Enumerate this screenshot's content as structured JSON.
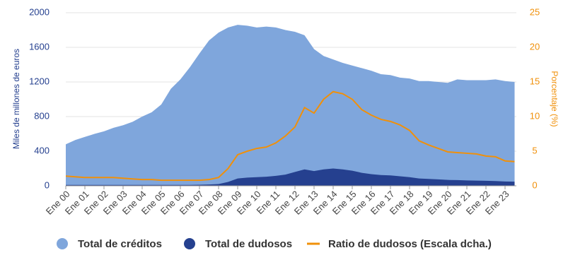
{
  "chart_data": {
    "type": "area",
    "categories": [
      "Ene 00",
      null,
      "Ene 01",
      null,
      "Ene 02",
      null,
      "Ene 03",
      null,
      "Ene 04",
      null,
      "Ene 05",
      null,
      "Ene 06",
      null,
      "Ene 07",
      null,
      "Ene 08",
      null,
      "Ene 09",
      null,
      "Ene 10",
      null,
      "Ene 11",
      null,
      "Ene 12",
      null,
      "Ene 13",
      null,
      "Ene 14",
      null,
      "Ene 15",
      null,
      "Ene 16",
      null,
      "Ene 17",
      null,
      "Ene 18",
      null,
      "Ene 19",
      null,
      "Ene 20",
      null,
      "Ene 21",
      null,
      "Ene 22",
      null,
      "Ene 23",
      null
    ],
    "series": [
      {
        "name": "Total de créditos",
        "color": "#7fa6dc",
        "values": [
          480,
          530,
          565,
          600,
          630,
          670,
          700,
          740,
          800,
          850,
          940,
          1120,
          1230,
          1370,
          1530,
          1680,
          1770,
          1830,
          1860,
          1850,
          1830,
          1840,
          1830,
          1800,
          1780,
          1740,
          1580,
          1500,
          1460,
          1420,
          1390,
          1360,
          1330,
          1290,
          1280,
          1250,
          1240,
          1210,
          1210,
          1200,
          1190,
          1230,
          1220,
          1220,
          1220,
          1230,
          1210,
          1200
        ]
      },
      {
        "name": "Total de dudosos",
        "color": "#25408f",
        "values": [
          10,
          10,
          10,
          10,
          10,
          10,
          10,
          10,
          10,
          10,
          10,
          10,
          10,
          10,
          12,
          15,
          20,
          45,
          85,
          95,
          100,
          105,
          115,
          130,
          160,
          190,
          170,
          190,
          200,
          190,
          175,
          150,
          135,
          125,
          120,
          110,
          100,
          85,
          80,
          75,
          68,
          66,
          62,
          60,
          58,
          55,
          50,
          48
        ]
      },
      {
        "name": "Ratio de dudosos (Escala dcha.)",
        "color": "#f0900a",
        "axis": "y2",
        "values": [
          1.4,
          1.3,
          1.2,
          1.2,
          1.2,
          1.2,
          1.1,
          1.0,
          0.9,
          0.9,
          0.8,
          0.8,
          0.8,
          0.8,
          0.8,
          0.9,
          1.2,
          2.5,
          4.5,
          5.0,
          5.4,
          5.6,
          6.2,
          7.2,
          8.5,
          11.3,
          10.5,
          12.5,
          13.6,
          13.3,
          12.5,
          11.0,
          10.2,
          9.6,
          9.3,
          8.8,
          8.0,
          6.5,
          5.9,
          5.4,
          4.9,
          4.8,
          4.7,
          4.6,
          4.3,
          4.2,
          3.6,
          3.5
        ]
      }
    ],
    "ylabel": "Miles de millones de euros",
    "y2label": "Porcentaje (%)",
    "ylim": [
      0,
      2000
    ],
    "yticks": [
      0,
      400,
      800,
      1200,
      1600,
      2000
    ],
    "y2lim": [
      0,
      25
    ],
    "y2ticks": [
      0,
      5,
      10,
      15,
      20,
      25
    ],
    "grid": true
  }
}
